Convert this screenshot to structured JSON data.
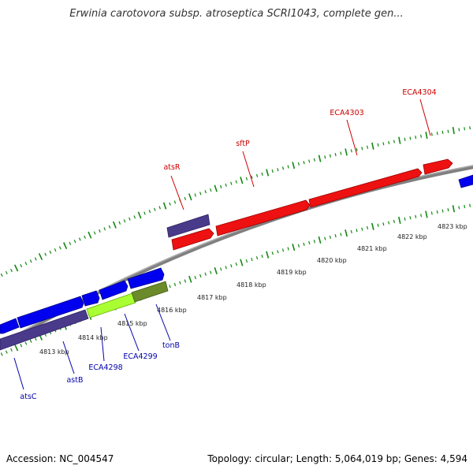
{
  "title": "Erwinia carotovora subsp. atroseptica SCRI1043, complete gen...",
  "footer": {
    "accession": "Accession: NC_004547",
    "stats": "Topology: circular; Length: 5,064,019 bp; Genes: 4,594"
  },
  "colors": {
    "forward_gene": "#ff1111",
    "reverse_gene": "#0000ee",
    "other_gene": "#4a3a8a",
    "highlight_gene": "#aaff33",
    "olive_gene": "#6b8a2a",
    "backbone": "#777777",
    "ticks": "#118811",
    "label_forward": "#cc0000",
    "label_reverse": "#0000aa"
  },
  "scale": {
    "kbp_labels": [
      "4813 kbp",
      "4814 kbp",
      "4815 kbp",
      "4816 kbp",
      "4817 kbp",
      "4818 kbp",
      "4819 kbp",
      "4820 kbp",
      "4821 kbp",
      "4822 kbp",
      "4823 kbp"
    ]
  },
  "gene_labels": {
    "forward": [
      "atsR",
      "sftP",
      "ECA4303",
      "ECA4304"
    ],
    "reverse": [
      "atsC",
      "astB",
      "ECA4298",
      "ECA4299",
      "tonB"
    ]
  }
}
